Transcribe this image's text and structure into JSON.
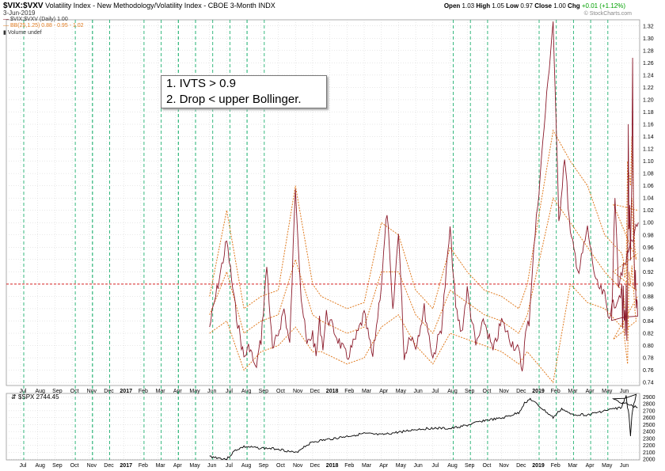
{
  "header": {
    "symbol": "$VIX:$VXV",
    "description": "Volatility Index - New Methodology/Volatility Index - CBOE 3-Month",
    "exchange": "INDX",
    "date": "3-Jun-2019",
    "open_label": "Open",
    "open": "1.03",
    "high_label": "High",
    "high": "1.05",
    "low_label": "Low",
    "low": "0.97",
    "close_label": "Close",
    "close": "1.00",
    "chg_label": "Chg",
    "chg": "+0.01 (+1.12%)",
    "chg_color": "#00a000"
  },
  "watermark": "© StockCharts.com",
  "legend": {
    "line1": "$VIX:$VXV (Daily) 1.00",
    "line2": "BB(25,1.25) 0.88 - 0.95 - 1.02",
    "line3": "Volume undef"
  },
  "annotation": {
    "line1": "1. IVTS > 0.9",
    "line2": "2. Drop < upper Bollinger."
  },
  "lower_panel": {
    "title": "$SPX 2744.45"
  },
  "colors": {
    "ratio_line": "#8b1a2b",
    "bollinger": "#e07b20",
    "threshold": "#d62020",
    "signal_lines": "#20b070",
    "spx_line": "#000000",
    "grid": "#d0d0d0"
  },
  "chart_data": [
    {
      "type": "line",
      "name": "upper-panel",
      "x_ticks": [
        "Jul",
        "Aug",
        "Sep",
        "Oct",
        "Nov",
        "Dec",
        "2017",
        "Feb",
        "Mar",
        "Apr",
        "May",
        "Jun",
        "Jul",
        "Aug",
        "Sep",
        "Oct",
        "Nov",
        "Dec",
        "2018",
        "Feb",
        "Mar",
        "Apr",
        "May",
        "Jun",
        "Jul",
        "Aug",
        "Sep",
        "Oct",
        "Nov",
        "Dec",
        "2019",
        "Feb",
        "Mar",
        "Apr",
        "May",
        "Jun"
      ],
      "y_ticks": [
        0.74,
        0.76,
        0.78,
        0.8,
        0.82,
        0.84,
        0.86,
        0.88,
        0.9,
        0.92,
        0.94,
        0.96,
        0.98,
        1.0,
        1.02,
        1.04,
        1.06,
        1.08,
        1.1,
        1.12,
        1.14,
        1.16,
        1.18,
        1.2,
        1.22,
        1.24,
        1.26,
        1.28,
        1.3,
        1.32
      ],
      "ylim": [
        0.735,
        1.33
      ],
      "threshold": 0.9,
      "series": [
        {
          "name": "$VIX:$VXV (Daily)",
          "points": [
            [
              "Jun",
              0.83
            ],
            [
              "Jul",
              0.97
            ],
            [
              "Jul",
              0.86
            ],
            [
              "Aug",
              0.78
            ],
            [
              "Aug",
              0.8
            ],
            [
              "Aug",
              0.76
            ],
            [
              "Sep",
              0.81
            ],
            [
              "Sep",
              0.93
            ],
            [
              "Sep",
              0.79
            ],
            [
              "Oct",
              0.82
            ],
            [
              "Oct",
              0.86
            ],
            [
              "Oct",
              0.8
            ],
            [
              "Nov",
              1.06
            ],
            [
              "Nov",
              0.88
            ],
            [
              "Nov",
              0.8
            ],
            [
              "Dec",
              0.82
            ],
            [
              "Dec",
              0.78
            ],
            [
              "Dec",
              0.84
            ],
            [
              "2017",
              0.8
            ],
            [
              "2017",
              0.85
            ],
            [
              "Feb",
              0.78
            ],
            [
              "Feb",
              0.81
            ],
            [
              "Mar",
              0.85
            ],
            [
              "Mar",
              0.78
            ],
            [
              "Apr",
              0.9
            ],
            [
              "Apr",
              1.02
            ],
            [
              "Apr",
              0.85
            ],
            [
              "May",
              0.99
            ],
            [
              "May",
              0.78
            ],
            [
              "May",
              0.82
            ],
            [
              "Jun",
              0.8
            ],
            [
              "Jun",
              0.86
            ],
            [
              "Jul",
              0.78
            ],
            [
              "Jul",
              0.83
            ],
            [
              "Aug",
              0.99
            ],
            [
              "Aug",
              0.86
            ],
            [
              "Aug",
              0.82
            ],
            [
              "Sep",
              0.89
            ],
            [
              "Sep",
              0.8
            ],
            [
              "Oct",
              0.84
            ],
            [
              "Oct",
              0.79
            ],
            [
              "Nov",
              0.84
            ],
            [
              "Nov",
              0.81
            ],
            [
              "Dec",
              0.79
            ],
            [
              "Dec",
              0.76
            ],
            [
              "Dec",
              0.82
            ],
            [
              "2018",
              0.84
            ],
            [
              "2018",
              0.93
            ],
            [
              "Feb",
              1.33
            ],
            [
              "Feb",
              1.0
            ],
            [
              "Feb",
              1.11
            ],
            [
              "Mar",
              0.98
            ],
            [
              "Mar",
              0.92
            ],
            [
              "Apr",
              0.99
            ],
            [
              "Apr",
              0.9
            ],
            [
              "May",
              0.88
            ],
            [
              "May",
              0.85
            ],
            [
              "Jun",
              0.89
            ],
            [
              "Jun",
              0.83
            ],
            [
              "Jul",
              0.9
            ],
            [
              "Jul",
              0.84
            ],
            [
              "Aug",
              0.86
            ],
            [
              "Aug",
              0.82
            ],
            [
              "Sep",
              0.89
            ],
            [
              "Sep",
              0.8
            ],
            [
              "Oct",
              0.88
            ],
            [
              "Oct",
              1.16
            ],
            [
              "Oct",
              0.99
            ],
            [
              "Nov",
              1.02
            ],
            [
              "Nov",
              0.93
            ],
            [
              "Dec",
              1.01
            ],
            [
              "Dec",
              1.08
            ],
            [
              "2019",
              1.26
            ],
            [
              "2019",
              1.05
            ],
            [
              "Feb",
              0.95
            ],
            [
              "Feb",
              0.9
            ],
            [
              "Mar",
              0.92
            ],
            [
              "Mar",
              0.86
            ],
            [
              "Apr",
              0.88
            ],
            [
              "Apr",
              0.85
            ],
            [
              "May",
              0.84
            ],
            [
              "May",
              1.04
            ],
            [
              "May",
              0.9
            ],
            [
              "Jun",
              1.0
            ]
          ]
        },
        {
          "name": "BB upper",
          "points": [
            [
              "Jun",
              0.88
            ],
            [
              "Jul",
              1.02
            ],
            [
              "Aug",
              0.86
            ],
            [
              "Sep",
              0.88
            ],
            [
              "Oct",
              0.89
            ],
            [
              "Nov",
              1.06
            ],
            [
              "Dec",
              0.9
            ],
            [
              "2017",
              0.88
            ],
            [
              "Feb",
              0.86
            ],
            [
              "Mar",
              0.87
            ],
            [
              "Apr",
              1.0
            ],
            [
              "May",
              0.98
            ],
            [
              "Jun",
              0.89
            ],
            [
              "Jul",
              0.86
            ],
            [
              "Aug",
              0.96
            ],
            [
              "Sep",
              0.92
            ],
            [
              "Oct",
              0.89
            ],
            [
              "Nov",
              0.88
            ],
            [
              "Dec",
              0.86
            ],
            [
              "2018",
              0.9
            ],
            [
              "Feb",
              1.15
            ],
            [
              "Mar",
              1.1
            ],
            [
              "Apr",
              1.06
            ],
            [
              "May",
              0.98
            ],
            [
              "Jun",
              0.95
            ],
            [
              "Jul",
              0.94
            ],
            [
              "Aug",
              0.91
            ],
            [
              "Sep",
              0.92
            ],
            [
              "Oct",
              1.1
            ],
            [
              "Nov",
              1.08
            ],
            [
              "Dec",
              1.06
            ],
            [
              "2019",
              1.14
            ],
            [
              "Feb",
              1.04
            ],
            [
              "Mar",
              0.96
            ],
            [
              "Apr",
              0.94
            ],
            [
              "May",
              1.03
            ],
            [
              "Jun",
              1.02
            ]
          ]
        },
        {
          "name": "BB middle",
          "points": [
            [
              "Jun",
              0.85
            ],
            [
              "Jul",
              0.92
            ],
            [
              "Aug",
              0.82
            ],
            [
              "Sep",
              0.84
            ],
            [
              "Oct",
              0.85
            ],
            [
              "Nov",
              0.94
            ],
            [
              "Dec",
              0.85
            ],
            [
              "2017",
              0.84
            ],
            [
              "Feb",
              0.82
            ],
            [
              "Mar",
              0.83
            ],
            [
              "Apr",
              0.92
            ],
            [
              "May",
              0.92
            ],
            [
              "Jun",
              0.85
            ],
            [
              "Jul",
              0.82
            ],
            [
              "Aug",
              0.89
            ],
            [
              "Sep",
              0.87
            ],
            [
              "Oct",
              0.85
            ],
            [
              "Nov",
              0.84
            ],
            [
              "Dec",
              0.82
            ],
            [
              "2018",
              0.85
            ],
            [
              "Feb",
              1.04
            ],
            [
              "Mar",
              1.0
            ],
            [
              "Apr",
              0.96
            ],
            [
              "May",
              0.92
            ],
            [
              "Jun",
              0.89
            ],
            [
              "Jul",
              0.89
            ],
            [
              "Aug",
              0.86
            ],
            [
              "Sep",
              0.86
            ],
            [
              "Oct",
              0.98
            ],
            [
              "Nov",
              1.0
            ],
            [
              "Dec",
              0.98
            ],
            [
              "2019",
              1.04
            ],
            [
              "Feb",
              0.97
            ],
            [
              "Mar",
              0.91
            ],
            [
              "Apr",
              0.89
            ],
            [
              "May",
              0.92
            ],
            [
              "Jun",
              0.95
            ]
          ]
        },
        {
          "name": "BB lower",
          "points": [
            [
              "Jun",
              0.82
            ],
            [
              "Jul",
              0.84
            ],
            [
              "Aug",
              0.76
            ],
            [
              "Sep",
              0.79
            ],
            [
              "Oct",
              0.8
            ],
            [
              "Nov",
              0.83
            ],
            [
              "Dec",
              0.79
            ],
            [
              "2017",
              0.79
            ],
            [
              "Feb",
              0.77
            ],
            [
              "Mar",
              0.78
            ],
            [
              "Apr",
              0.83
            ],
            [
              "May",
              0.85
            ],
            [
              "Jun",
              0.8
            ],
            [
              "Jul",
              0.77
            ],
            [
              "Aug",
              0.82
            ],
            [
              "Sep",
              0.81
            ],
            [
              "Oct",
              0.8
            ],
            [
              "Nov",
              0.79
            ],
            [
              "Dec",
              0.77
            ],
            [
              "2018",
              0.79
            ],
            [
              "Feb",
              0.74
            ],
            [
              "Mar",
              0.9
            ],
            [
              "Apr",
              0.87
            ],
            [
              "May",
              0.86
            ],
            [
              "Jun",
              0.83
            ],
            [
              "Jul",
              0.84
            ],
            [
              "Aug",
              0.81
            ],
            [
              "Sep",
              0.79
            ],
            [
              "Oct",
              0.77
            ],
            [
              "Nov",
              0.92
            ],
            [
              "Dec",
              0.9
            ],
            [
              "2019",
              0.93
            ],
            [
              "Feb",
              0.9
            ],
            [
              "Mar",
              0.86
            ],
            [
              "Apr",
              0.84
            ],
            [
              "May",
              0.81
            ],
            [
              "Jun",
              0.88
            ]
          ]
        }
      ],
      "signal_months": [
        "Jul",
        "Nov",
        "Apr",
        "May",
        "Aug",
        "Aug",
        "Feb",
        "Feb",
        "Mar",
        "Apr",
        "May",
        "Jun",
        "Jul",
        "Aug",
        "Sep",
        "Sep",
        "Oct",
        "Oct",
        "Nov",
        "Dec",
        "2019",
        "Mar",
        "Apr",
        "May"
      ]
    },
    {
      "type": "line",
      "name": "lower-panel",
      "y_ticks": [
        2000,
        2100,
        2200,
        2300,
        2400,
        2500,
        2600,
        2700,
        2800,
        2900
      ],
      "ylim": [
        1990,
        2950
      ],
      "series": [
        {
          "name": "$SPX",
          "points": [
            [
              "Jun",
              2040
            ],
            [
              "Jul",
              2000
            ],
            [
              "Jul",
              2130
            ],
            [
              "Aug",
              2180
            ],
            [
              "Sep",
              2160
            ],
            [
              "Oct",
              2150
            ],
            [
              "Nov",
              2090
            ],
            [
              "Nov",
              2180
            ],
            [
              "Dec",
              2250
            ],
            [
              "2017",
              2270
            ],
            [
              "Feb",
              2330
            ],
            [
              "Mar",
              2370
            ],
            [
              "Apr",
              2350
            ],
            [
              "May",
              2390
            ],
            [
              "Jun",
              2430
            ],
            [
              "Jul",
              2450
            ],
            [
              "Aug",
              2440
            ],
            [
              "Sep",
              2490
            ],
            [
              "Oct",
              2560
            ],
            [
              "Nov",
              2590
            ],
            [
              "Dec",
              2670
            ],
            [
              "2018",
              2810
            ],
            [
              "2018",
              2870
            ],
            [
              "Feb",
              2600
            ],
            [
              "Feb",
              2730
            ],
            [
              "Mar",
              2650
            ],
            [
              "Apr",
              2640
            ],
            [
              "May",
              2700
            ],
            [
              "Jun",
              2750
            ],
            [
              "Jul",
              2810
            ],
            [
              "Aug",
              2870
            ],
            [
              "Sep",
              2920
            ],
            [
              "Oct",
              2750
            ],
            [
              "Nov",
              2640
            ],
            [
              "Dec",
              2350
            ],
            [
              "2019",
              2640
            ],
            [
              "Feb",
              2780
            ],
            [
              "Mar",
              2830
            ],
            [
              "Apr",
              2920
            ],
            [
              "May",
              2860
            ],
            [
              "Jun",
              2744
            ]
          ]
        }
      ]
    }
  ]
}
